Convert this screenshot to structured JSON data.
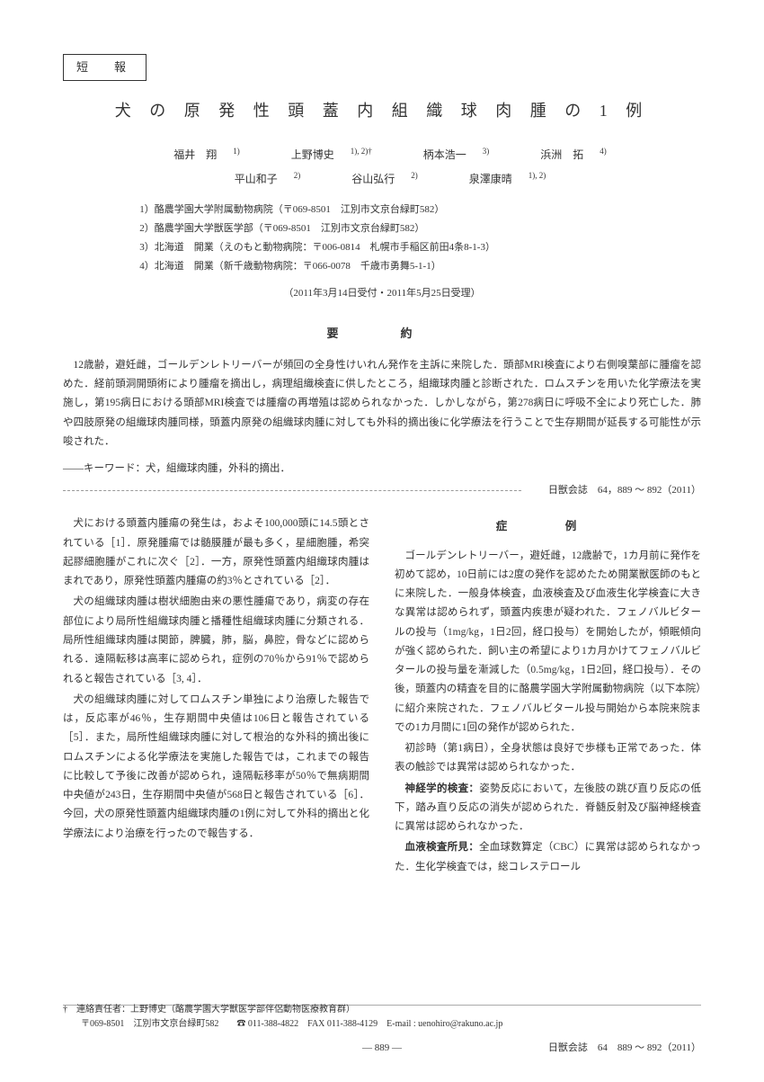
{
  "category": "短　報",
  "title": "犬 の 原 発 性 頭 蓋 内 組 織 球 肉 腫 の 1 例",
  "authors_row1": [
    {
      "name": "福井　翔",
      "sup": "1)"
    },
    {
      "name": "上野博史",
      "sup": "1), 2)†"
    },
    {
      "name": "柄本浩一",
      "sup": "3)"
    },
    {
      "name": "浜洲　拓",
      "sup": "4)"
    }
  ],
  "authors_row2": [
    {
      "name": "平山和子",
      "sup": "2)"
    },
    {
      "name": "谷山弘行",
      "sup": "2)"
    },
    {
      "name": "泉澤康晴",
      "sup": "1), 2)"
    }
  ],
  "affiliations": [
    "1）酪農学園大学附属動物病院（〒069-8501　江別市文京台緑町582）",
    "2）酪農学園大学獣医学部（〒069-8501　江別市文京台緑町582）",
    "3）北海道　開業（えのもと動物病院：〒006-0814　札幌市手稲区前田4条8-1-3）",
    "4）北海道　開業（新千歳動物病院：〒066-0078　千歳市勇舞5-1-1）"
  ],
  "dates": "（2011年3月14日受付・2011年5月25日受理）",
  "abstract_heading": "要　約",
  "abstract_body": "12歳齢，避妊雌，ゴールデンレトリーバーが頻回の全身性けいれん発作を主訴に来院した．頭部MRI検査により右側嗅葉部に腫瘤を認めた．経前頭洞開頭術により腫瘤を摘出し，病理組織検査に供したところ，組織球肉腫と診断された．ロムスチンを用いた化学療法を実施し，第195病日における頭部MRI検査では腫瘤の再増殖は認められなかった．しかしながら，第278病日に呼吸不全により死亡した．肺や四肢原発の組織球肉腫同様，頭蓋内原発の組織球肉腫に対しても外科的摘出後に化学療法を行うことで生存期間が延長する可能性が示唆された．",
  "keywords": "――キーワード：犬，組織球肉腫，外科的摘出．",
  "citation": "日獣会誌　64，889 ～ 892（2011）",
  "left_col": {
    "p1": "犬における頭蓋内腫瘍の発生は，およそ100,000頭に14.5頭とされている［1］．原発腫瘍では髄膜腫が最も多く，星細胞腫，希突起膠細胞腫がこれに次ぐ［2］．一方，原発性頭蓋内組織球肉腫はまれであり，原発性頭蓋内腫瘍の約3％とされている［2］．",
    "p2": "犬の組織球肉腫は樹状細胞由来の悪性腫瘍であり，病変の存在部位により局所性組織球肉腫と播種性組織球肉腫に分類される．局所性組織球肉腫は関節，脾臓，肺，脳，鼻腔，骨などに認められる．遠隔転移は高率に認められ，症例の70％から91％で認められると報告されている［3, 4］．",
    "p3": "犬の組織球肉腫に対してロムスチン単独により治療した報告では，反応率が46％，生存期間中央値は106日と報告されている［5］．また，局所性組織球肉腫に対して根治的な外科的摘出後にロムスチンによる化学療法を実施した報告では，これまでの報告に比較して予後に改善が認められ，遠隔転移率が50％で無病期間中央値が243日，生存期間中央値が568日と報告されている［6］．今回，犬の原発性頭蓋内組織球肉腫の1例に対して外科的摘出と化学療法により治療を行ったので報告する．"
  },
  "right_col": {
    "heading": "症　例",
    "p1": "ゴールデンレトリーバー，避妊雌，12歳齢で，1カ月前に発作を初めて認め，10日前には2度の発作を認めたため開業獣医師のもとに来院した．一般身体検査，血液検査及び血液生化学検査に大きな異常は認められず，頭蓋内疾患が疑われた．フェノバルビタールの投与（1mg/kg，1日2回，経口投与）を開始したが，傾眠傾向が強く認められた．飼い主の希望により1カ月かけてフェノバルビタールの投与量を漸減した（0.5mg/kg，1日2回，経口投与）．その後，頭蓋内の精査を目的に酪農学園大学附属動物病院（以下本院）に紹介来院された．フェノバルビタール投与開始から本院来院までの1カ月間に1回の発作が認められた．",
    "p2": "初診時（第1病日），全身状態は良好で歩様も正常であった．体表の触診では異常は認められなかった．",
    "p3_label": "神経学的検査：",
    "p3": "姿勢反応において，左後肢の跳び直り反応の低下，踏み直り反応の消失が認められた．脊髄反射及び脳神経検査に異常は認められなかった．",
    "p4_label": "血液検査所見：",
    "p4": "全血球数算定（CBC）に異常は認められなかった．生化学検査では，総コレステロール"
  },
  "footnote": "†　連絡責任者：上野博史（酪農学園大学獣医学部伴侶動物医療教育群）\n　　〒069-8501　江別市文京台緑町582　　☎ 011-388-4822　FAX 011-388-4129　E-mail : uenohiro@rakuno.ac.jp",
  "page_number": "― 889 ―",
  "footer_citation": "日獣会誌　64　889 ～ 892（2011）"
}
